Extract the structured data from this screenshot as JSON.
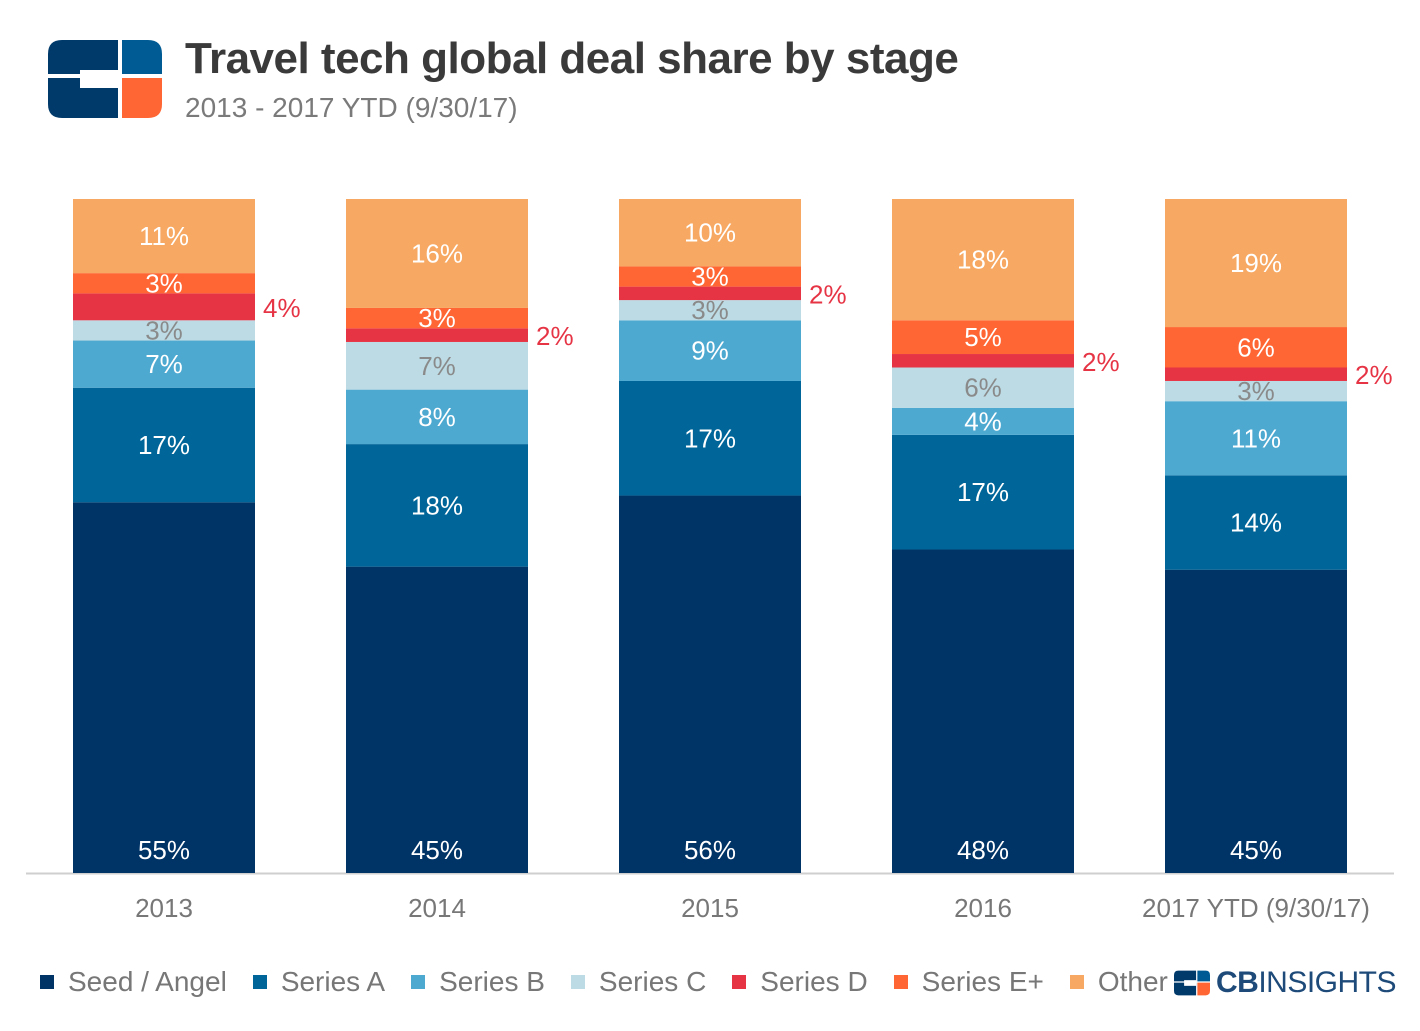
{
  "header": {
    "title": "Travel tech global deal share by stage",
    "subtitle": "2013 - 2017 YTD (9/30/17)"
  },
  "brand": {
    "prefix": "CB",
    "suffix": "INSIGHTS"
  },
  "colors": {
    "Seed / Angel": "#003366",
    "Series A": "#006699",
    "Series B": "#4ea9d1",
    "Series C": "#bcdbe4",
    "Series D": "#e63445",
    "Series E+": "#ff6633",
    "Other": "#f7a862",
    "logo_blue": "#003a6b",
    "logo_mid": "#005b94",
    "logo_orange": "#ff6633"
  },
  "chart_data": {
    "type": "bar",
    "stacked": true,
    "title": "Travel tech global deal share by stage",
    "subtitle": "2013 - 2017 YTD (9/30/17)",
    "categories": [
      "2013",
      "2014",
      "2015",
      "2016",
      "2017 YTD (9/30/17)"
    ],
    "ylim": [
      0,
      100
    ],
    "grid": false,
    "legend": "bottom",
    "series": [
      {
        "name": "Seed / Angel",
        "values": [
          55,
          45,
          56,
          48,
          45
        ],
        "labels": [
          "55%",
          "45%",
          "56%",
          "48%",
          "45%"
        ]
      },
      {
        "name": "Series A",
        "values": [
          17,
          18,
          17,
          17,
          14
        ],
        "labels": [
          "17%",
          "18%",
          "17%",
          "17%",
          "14%"
        ]
      },
      {
        "name": "Series B",
        "values": [
          7,
          8,
          9,
          4,
          11
        ],
        "labels": [
          "7%",
          "8%",
          "9%",
          "4%",
          "11%"
        ]
      },
      {
        "name": "Series C",
        "values": [
          3,
          7,
          3,
          6,
          3
        ],
        "labels": [
          "3%",
          "7%",
          "3%",
          "6%",
          "3%"
        ]
      },
      {
        "name": "Series D",
        "values": [
          4,
          2,
          2,
          2,
          2
        ],
        "labels": [
          "4%",
          "2%",
          "2%",
          "2%",
          "2%"
        ]
      },
      {
        "name": "Series E+",
        "values": [
          3,
          3,
          3,
          5,
          6
        ],
        "labels": [
          "3%",
          "3%",
          "3%",
          "5%",
          "6%"
        ]
      },
      {
        "name": "Other",
        "values": [
          11,
          16,
          10,
          18,
          19
        ],
        "labels": [
          "11%",
          "16%",
          "10%",
          "18%",
          "19%"
        ]
      }
    ]
  }
}
